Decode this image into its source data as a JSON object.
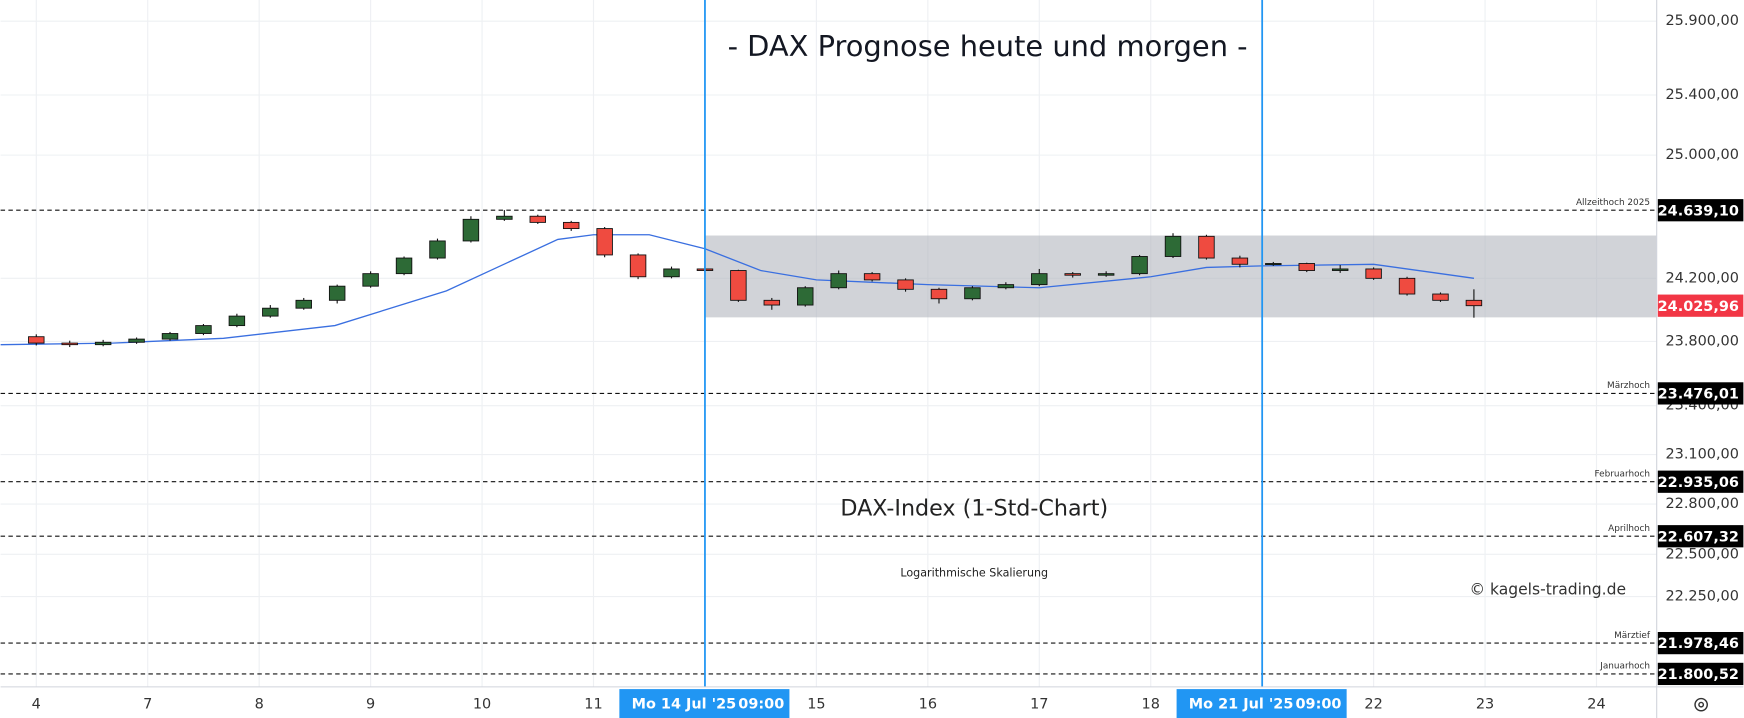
{
  "chart_data": {
    "type": "candlestick",
    "title": "- DAX Prognose heute und morgen -",
    "subtitle": "DAX-Index (1-Std-Chart)",
    "scale_note": "Logarithmische Skalierung",
    "copyright": "© kagels-trading.de",
    "log_scale": true,
    "grid": true,
    "up_color": "#2d6a36",
    "down_color": "#ef4b40",
    "x": [
      0,
      0.3,
      0.6,
      0.9,
      1.2,
      1.5,
      1.8,
      2.1,
      2.4,
      2.7,
      3.0,
      3.3,
      3.6,
      3.9,
      4.2,
      4.5,
      4.8,
      5.1,
      5.4,
      5.7,
      6.0,
      6.3,
      6.6,
      6.9,
      7.2,
      7.5,
      7.8,
      8.1,
      8.4,
      8.7,
      9.0,
      9.3,
      9.6,
      9.9,
      10.2,
      10.5,
      10.8,
      11.1,
      11.4,
      11.7,
      12.0,
      12.3,
      12.6,
      12.9
    ],
    "open": [
      23830,
      23790,
      23780,
      23795,
      23815,
      23850,
      23900,
      23960,
      24010,
      24060,
      24150,
      24230,
      24330,
      24440,
      24580,
      24600,
      24560,
      24520,
      24350,
      24210,
      24260,
      24250,
      24060,
      24030,
      24140,
      24230,
      24190,
      24130,
      24070,
      24140,
      24160,
      24230,
      24220,
      24230,
      24340,
      24470,
      24330,
      24290,
      24295,
      24250,
      24260,
      24200,
      24100,
      24060
    ],
    "high": [
      23845,
      23805,
      23810,
      23825,
      23860,
      23910,
      23975,
      24030,
      24075,
      24160,
      24245,
      24340,
      24455,
      24600,
      24640,
      24610,
      24570,
      24530,
      24360,
      24275,
      24280,
      24255,
      24075,
      24150,
      24250,
      24240,
      24200,
      24140,
      24150,
      24175,
      24260,
      24240,
      24245,
      24350,
      24490,
      24480,
      24345,
      24305,
      24300,
      24285,
      24270,
      24210,
      24110,
      24130
    ],
    "low": [
      23775,
      23765,
      23770,
      23785,
      23805,
      23840,
      23890,
      23950,
      24000,
      24040,
      24140,
      24220,
      24320,
      24430,
      24570,
      24550,
      24505,
      24335,
      24195,
      24200,
      24240,
      24050,
      24000,
      24020,
      24130,
      24180,
      24115,
      24040,
      24060,
      24130,
      24150,
      24205,
      24210,
      24220,
      24330,
      24320,
      24270,
      24280,
      24240,
      24235,
      24190,
      24090,
      24050,
      23950
    ],
    "close": [
      23790,
      23780,
      23795,
      23815,
      23850,
      23900,
      23960,
      24010,
      24060,
      24150,
      24230,
      24330,
      24440,
      24580,
      24600,
      24560,
      24520,
      24350,
      24210,
      24260,
      24250,
      24060,
      24030,
      24140,
      24230,
      24190,
      24130,
      24070,
      24140,
      24160,
      24230,
      24220,
      24230,
      24340,
      24470,
      24330,
      24290,
      24295,
      24250,
      24260,
      24200,
      24100,
      24060,
      24025.96
    ],
    "ma": {
      "color": "#3a6fe0",
      "x": [
        -0.32,
        0.68,
        1.68,
        2.68,
        3.68,
        4.68,
        5.0,
        5.5,
        6.0,
        6.5,
        7.0,
        8.0,
        9.0,
        10.0,
        10.5,
        11.0,
        12.0,
        12.5,
        12.9
      ],
      "values": [
        23780,
        23790,
        23820,
        23900,
        24120,
        24450,
        24480,
        24480,
        24390,
        24250,
        24190,
        24160,
        24140,
        24210,
        24270,
        24280,
        24290,
        24240,
        24200
      ]
    },
    "zone": [
      23952,
      24475
    ],
    "xlim": [
      -0.32,
      14.54
    ],
    "xticks": [
      {
        "value": 0,
        "label": "4"
      },
      {
        "value": 1,
        "label": "7"
      },
      {
        "value": 2,
        "label": "8"
      },
      {
        "value": 3,
        "label": "9"
      },
      {
        "value": 4,
        "label": "10"
      },
      {
        "value": 5,
        "label": "11"
      },
      {
        "value": 7,
        "label": "15"
      },
      {
        "value": 8,
        "label": "16"
      },
      {
        "value": 9,
        "label": "17"
      },
      {
        "value": 10,
        "label": "18"
      },
      {
        "value": 12,
        "label": "22"
      },
      {
        "value": 13,
        "label": "23"
      },
      {
        "value": 14,
        "label": "24"
      }
    ],
    "markers": [
      {
        "x": 6,
        "date": "Mo 14 Jul '25",
        "time": "09:00"
      },
      {
        "x": 11,
        "date": "Mo 21 Jul '25",
        "time": "09:00"
      }
    ],
    "ylim": [
      21726,
      26045
    ],
    "yticks": [
      {
        "value": 25900,
        "label": "25.900,00"
      },
      {
        "value": 25400,
        "label": "25.400,00"
      },
      {
        "value": 25000,
        "label": "25.000,00"
      },
      {
        "value": 24200,
        "label": "24.200,00"
      },
      {
        "value": 23800,
        "label": "23.800,00"
      },
      {
        "value": 23400,
        "label": "23.400,00"
      },
      {
        "value": 23100,
        "label": "23.100,00"
      },
      {
        "value": 22800,
        "label": "22.800,00"
      },
      {
        "value": 22500,
        "label": "22.500,00"
      },
      {
        "value": 22250,
        "label": "22.250,00"
      }
    ],
    "levels": [
      {
        "label": "Allzeithoch 2025",
        "value": 24639.1,
        "value_label": "24.639,10"
      },
      {
        "label": "Märzhoch",
        "value": 23476.01,
        "value_label": "23.476,01"
      },
      {
        "label": "Februarhoch",
        "value": 22935.06,
        "value_label": "22.935,06"
      },
      {
        "label": "Aprilhoch",
        "value": 22607.32,
        "value_label": "22.607,32"
      },
      {
        "label": "Märztief",
        "value": 21978.46,
        "value_label": "21.978,46"
      },
      {
        "label": "Januarhoch",
        "value": 21800.52,
        "value_label": "21.800,52"
      }
    ],
    "last_price": {
      "value": 24025.96,
      "label": "24.025,96",
      "color": "#f23645"
    }
  }
}
